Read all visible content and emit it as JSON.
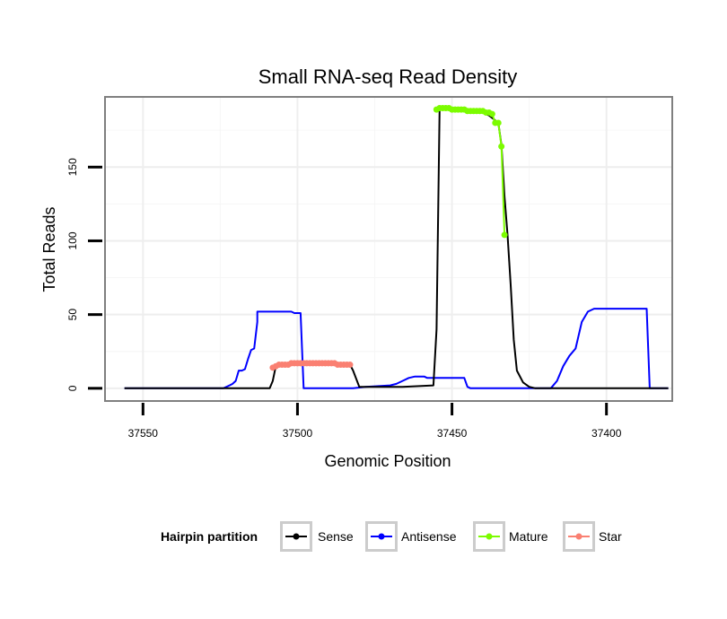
{
  "chart_data": {
    "type": "line",
    "title": "Small RNA-seq Read Density",
    "xlabel": "Genomic Position",
    "ylabel": "Total Reads",
    "x_reversed": true,
    "xlim": [
      37562,
      37379
    ],
    "ylim": [
      -8,
      197
    ],
    "x_ticks": [
      37550,
      37500,
      37450,
      37400
    ],
    "y_ticks": [
      0,
      50,
      100,
      150
    ],
    "grid": true,
    "legend": {
      "title": "Hairpin partition",
      "position": "bottom",
      "entries": [
        "Sense",
        "Antisense",
        "Mature",
        "Star"
      ]
    },
    "colors": {
      "Sense": "#000000",
      "Antisense": "#0000ff",
      "Mature": "#7cfc00",
      "Star": "#fa8072"
    },
    "series": [
      {
        "name": "Sense",
        "style": "line",
        "x": [
          37556,
          37509,
          37508,
          37507,
          37499,
          37491,
          37483,
          37482,
          37480,
          37475,
          37466,
          37456,
          37455,
          37454,
          37452,
          37450,
          37445,
          37440,
          37438,
          37435,
          37434,
          37433,
          37432,
          37431,
          37430,
          37429,
          37427,
          37425,
          37423,
          37418,
          37400,
          37380
        ],
        "y": [
          0,
          0,
          5,
          15,
          17,
          16,
          16,
          12,
          1,
          1,
          1,
          2,
          40,
          190,
          190,
          190,
          188,
          187,
          185,
          180,
          165,
          130,
          104,
          70,
          33,
          12,
          4,
          1,
          0,
          0,
          0,
          0
        ]
      },
      {
        "name": "Antisense",
        "style": "line",
        "x": [
          37556,
          37524,
          37522,
          37521,
          37520,
          37519,
          37518,
          37517,
          37516,
          37515,
          37514,
          37513,
          37513,
          37502,
          37501,
          37499,
          37498,
          37490,
          37482,
          37478,
          37470,
          37468,
          37466,
          37464,
          37462,
          37459,
          37458,
          37457,
          37448,
          37446,
          37445,
          37444,
          37418,
          37416,
          37414,
          37412,
          37410,
          37408,
          37406,
          37404,
          37389,
          37387,
          37386,
          37380
        ],
        "y": [
          0,
          0,
          2,
          3,
          5,
          12,
          12,
          13,
          20,
          26,
          27,
          45,
          52,
          52,
          51,
          51,
          0,
          0,
          0,
          1,
          2,
          3,
          5,
          7,
          8,
          8,
          7,
          7,
          7,
          7,
          1,
          0,
          0,
          5,
          15,
          22,
          27,
          45,
          52,
          54,
          54,
          54,
          0,
          0
        ]
      },
      {
        "name": "Mature",
        "style": "points",
        "x": [
          37455,
          37454,
          37453,
          37452,
          37451,
          37450,
          37449,
          37448,
          37447,
          37446,
          37445,
          37444,
          37443,
          37442,
          37441,
          37440,
          37439,
          37438,
          37437,
          37436,
          37435,
          37434,
          37433
        ],
        "y": [
          189,
          190,
          190,
          190,
          190,
          189,
          189,
          189,
          189,
          189,
          188,
          188,
          188,
          188,
          188,
          188,
          187,
          187,
          186,
          180,
          180,
          164,
          104
        ]
      },
      {
        "name": "Star",
        "style": "points",
        "x": [
          37508,
          37507,
          37506,
          37505,
          37504,
          37503,
          37502,
          37501,
          37500,
          37499,
          37498,
          37497,
          37496,
          37495,
          37494,
          37493,
          37492,
          37491,
          37490,
          37489,
          37488,
          37487,
          37486,
          37485,
          37484,
          37483
        ],
        "y": [
          14,
          15,
          16,
          16,
          16,
          16,
          17,
          17,
          17,
          17,
          17,
          17,
          17,
          17,
          17,
          17,
          17,
          17,
          17,
          17,
          17,
          16,
          16,
          16,
          16,
          16
        ]
      }
    ]
  }
}
